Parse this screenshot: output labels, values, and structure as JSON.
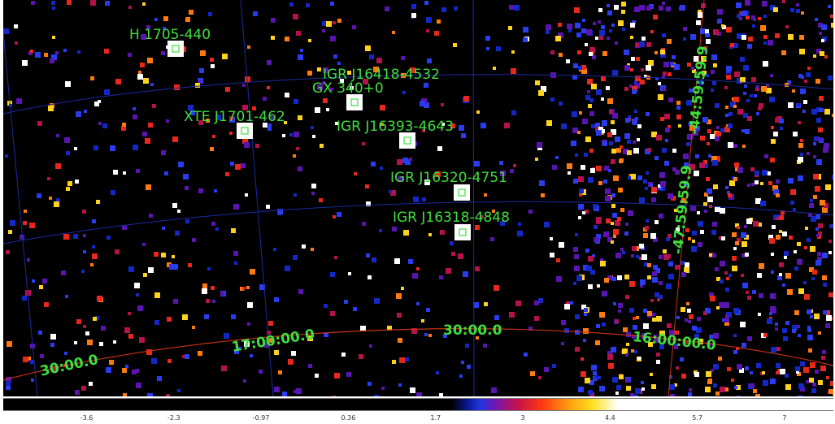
{
  "sources": [
    {
      "name": "H 1705-440"
    },
    {
      "name": "IGR J16418-4532"
    },
    {
      "name": "GX 340+0"
    },
    {
      "name": "XTE J1701-462"
    },
    {
      "name": "IGR J16393-4643"
    },
    {
      "name": "IGR J16320-4751"
    },
    {
      "name": "IGR J16318-4848"
    }
  ],
  "ra_labels": [
    "30:00.0",
    "17:00:00.0",
    "30:00.0",
    "16:00:00.0"
  ],
  "dec_labels": [
    "-44:59:59.9",
    "-47:59:59.9"
  ],
  "colorbar_ticks": [
    "-3.6",
    "-2.3",
    "-0.97",
    "0.36",
    "1.7",
    "3",
    "4.4",
    "5.7",
    "7"
  ],
  "colors": {
    "background": "#000000",
    "label": "#3ee03e",
    "grid": "#1a2aa0",
    "ra_axis": "#c83214",
    "marker": "#3ee03e"
  }
}
